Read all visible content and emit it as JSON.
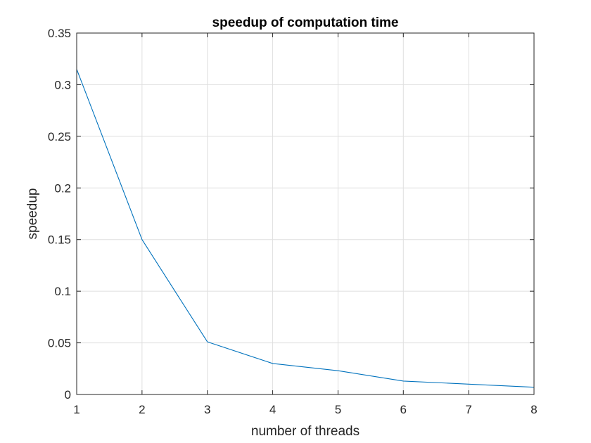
{
  "chart_data": {
    "type": "line",
    "title": "speedup of computation time",
    "xlabel": "number of threads",
    "ylabel": "speedup",
    "x": [
      1,
      2,
      3,
      4,
      5,
      6,
      7,
      8
    ],
    "series": [
      {
        "values": [
          0.315,
          0.15,
          0.051,
          0.03,
          0.023,
          0.013,
          0.01,
          0.007
        ],
        "color": "#0072BD"
      }
    ],
    "xlim": [
      1,
      8
    ],
    "ylim": [
      0,
      0.35
    ],
    "xticks": [
      1,
      2,
      3,
      4,
      5,
      6,
      7,
      8
    ],
    "xtick_labels": [
      "1",
      "2",
      "3",
      "4",
      "5",
      "6",
      "7",
      "8"
    ],
    "yticks": [
      0,
      0.05,
      0.1,
      0.15,
      0.2,
      0.25,
      0.3,
      0.35
    ],
    "ytick_labels": [
      "0",
      "0.05",
      "0.1",
      "0.15",
      "0.2",
      "0.25",
      "0.3",
      "0.35"
    ],
    "grid": true,
    "legend": "none",
    "colors": {
      "grid": "#dfdfdf",
      "axis": "#262626"
    }
  }
}
